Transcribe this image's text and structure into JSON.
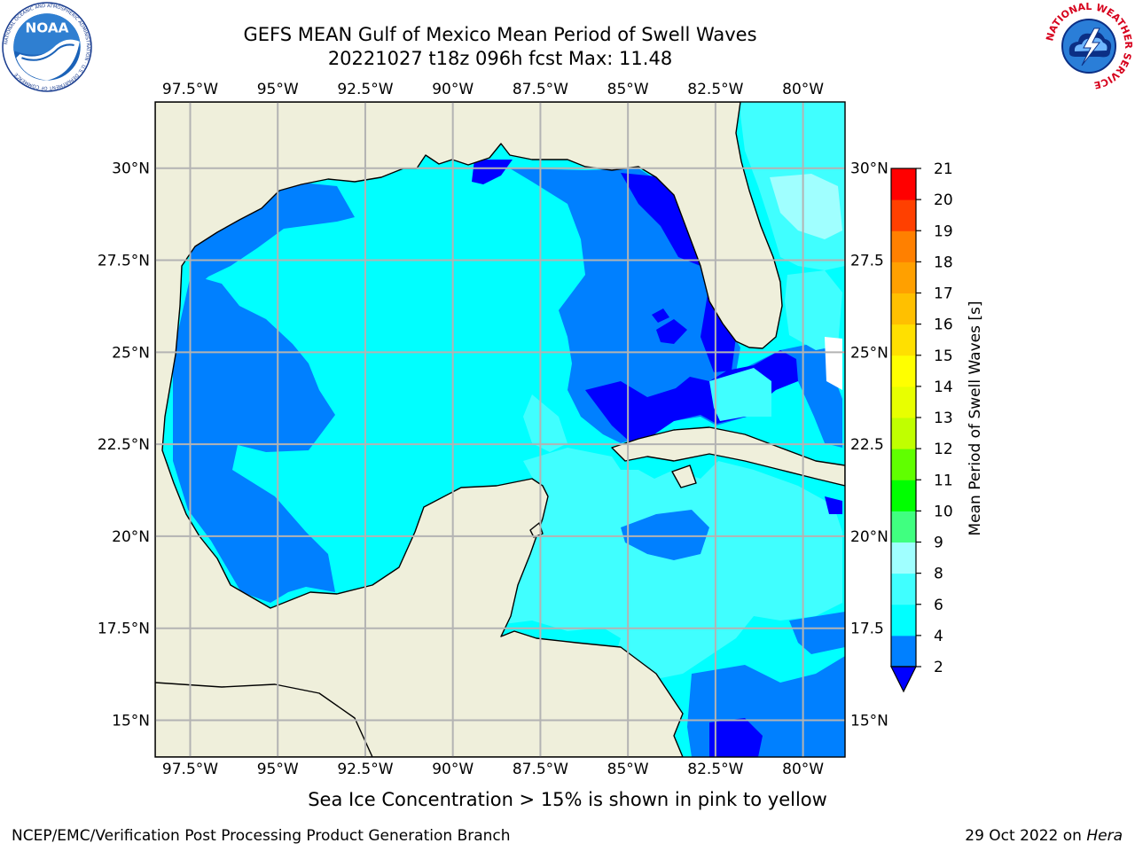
{
  "header": {
    "title_line1": "GEFS MEAN Gulf of Mexico Mean Period of Swell Waves",
    "title_line2": "20221027 t18z 096h fcst   Max: 11.48"
  },
  "logos": {
    "left": "NOAA",
    "left_ring_text": "NATIONAL OCEANIC AND ATMOSPHERIC ADMINISTRATION · U.S. DEPARTMENT OF COMMERCE",
    "right_ring_text": "NATIONAL WEATHER SERVICE"
  },
  "chart_data": {
    "type": "map",
    "region": "Gulf of Mexico",
    "variable": "Mean Period of Swell Waves",
    "max_value": 11.48,
    "lon_range": [
      -98.5,
      -78.8
    ],
    "lat_range": [
      14.0,
      31.8
    ],
    "lon_ticks": [
      "97.5°W",
      "95°W",
      "92.5°W",
      "90°W",
      "87.5°W",
      "85°W",
      "82.5°W",
      "80°W"
    ],
    "lon_tick_values": [
      -97.5,
      -95,
      -92.5,
      -90,
      -87.5,
      -85,
      -82.5,
      -80
    ],
    "lat_ticks_left": [
      "30°N",
      "27.5°N",
      "25°N",
      "22.5°N",
      "20°N",
      "17.5°N",
      "15°N"
    ],
    "lat_ticks_right": [
      "30°N",
      "27.5",
      "25°N",
      "22.5",
      "20°N",
      "17.5",
      "15°N"
    ],
    "lat_tick_values": [
      30,
      27.5,
      25,
      22.5,
      20,
      17.5,
      15
    ],
    "grid": true,
    "colorbar": {
      "label": "Mean Period of Swell Waves [s]",
      "placement": "right",
      "extend": "min",
      "levels": [
        "2",
        "4",
        "6",
        "8",
        "9",
        "10",
        "11",
        "12",
        "13",
        "14",
        "15",
        "16",
        "17",
        "18",
        "19",
        "20",
        "21"
      ],
      "colors": [
        "#0000ff",
        "#0080ff",
        "#00ffff",
        "#40ffff",
        "#a0ffff",
        "#40ff80",
        "#00ff00",
        "#60ff00",
        "#c0ff00",
        "#e8ff00",
        "#ffff00",
        "#ffe000",
        "#ffc000",
        "#ffa000",
        "#ff8000",
        "#ff4000",
        "#ff0000"
      ]
    },
    "colors": {
      "land": "#efefdb",
      "coast": "#000000",
      "gridline": "#b3b3b3"
    }
  },
  "caption": "Sea Ice Concentration > 15% is shown in pink to yellow",
  "footer": {
    "left": "NCEP/EMC/Verification Post Processing Product Generation Branch",
    "date": "29 Oct 2022 on",
    "host": "Hera"
  }
}
